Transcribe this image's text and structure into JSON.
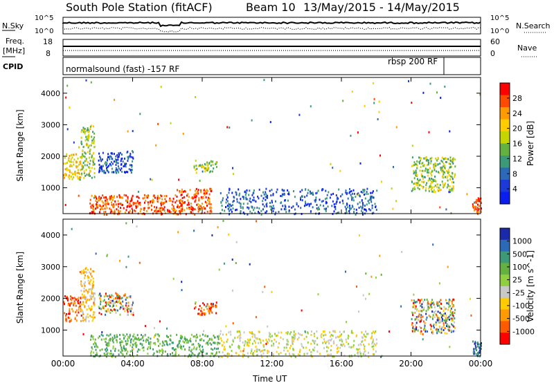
{
  "header": {
    "station": "South Pole Station (fitACF)",
    "beam": "Beam 10",
    "dates": "13/May/2015 - 14/May/2015"
  },
  "summary_panels": {
    "nsky": {
      "label": "N.Sky",
      "ticks_left": [
        "10^5",
        "10^0"
      ],
      "ticks_right": [
        "10^5",
        "10^0"
      ],
      "right_label": "N.Search"
    },
    "freq": {
      "label": "Freq.",
      "unit": "[MHz]",
      "ticks_left": [
        "18",
        "8"
      ],
      "ticks_right": [
        "60",
        "0"
      ],
      "right_label": "Nave"
    },
    "cpid": {
      "label": "CPID",
      "mode1": "normalsound (fast) -157 RF",
      "mode2": "rbsp 200 RF"
    }
  },
  "chart_data": [
    {
      "type": "heatmap",
      "title": "",
      "xlabel": "Time UT",
      "ylabel": "Slant Range [km]",
      "xticks": [
        "00:00",
        "04:00",
        "08:00",
        "12:00",
        "16:00",
        "20:00",
        "00:00"
      ],
      "yticks": [
        "1000",
        "2000",
        "3000",
        "4000"
      ],
      "ylim": [
        180,
        4500
      ],
      "xlim_hours": [
        0,
        24
      ],
      "colorbar": {
        "label": "Power [dB]",
        "ticks": [
          "28",
          "24",
          "20",
          "16",
          "12",
          "8",
          "4"
        ],
        "colors": [
          "#ff0000",
          "#ff4a00",
          "#ff9a00",
          "#ffcc00",
          "#c6d400",
          "#64b040",
          "#3c9a78",
          "#2c6ab8",
          "#1c3ad8",
          "#0a1ef0"
        ]
      },
      "echo_regions": [
        {
          "t": [
            0.0,
            1.0
          ],
          "r": [
            1300,
            2100
          ],
          "value": "med-high"
        },
        {
          "t": [
            1.0,
            1.8
          ],
          "r": [
            1300,
            3000
          ],
          "value": "med"
        },
        {
          "t": [
            1.5,
            6.5
          ],
          "r": [
            180,
            800
          ],
          "value": "high"
        },
        {
          "t": [
            6.5,
            8.5
          ],
          "r": [
            180,
            1000
          ],
          "value": "high"
        },
        {
          "t": [
            2.0,
            4.0
          ],
          "r": [
            1500,
            2200
          ],
          "value": "low"
        },
        {
          "t": [
            7.5,
            8.8
          ],
          "r": [
            1500,
            1900
          ],
          "value": "med"
        },
        {
          "t": [
            9.0,
            18.0
          ],
          "r": [
            180,
            1000
          ],
          "value": "low"
        },
        {
          "t": [
            20.0,
            22.5
          ],
          "r": [
            900,
            2000
          ],
          "value": "med"
        },
        {
          "t": [
            23.5,
            24.0
          ],
          "r": [
            180,
            700
          ],
          "value": "high"
        }
      ]
    },
    {
      "type": "heatmap",
      "title": "",
      "xlabel": "Time UT",
      "ylabel": "Slant Range [km]",
      "xticks": [
        "00:00",
        "04:00",
        "08:00",
        "12:00",
        "16:00",
        "20:00",
        "00:00"
      ],
      "yticks": [
        "1000",
        "2000",
        "3000",
        "4000"
      ],
      "ylim": [
        180,
        4500
      ],
      "xlim_hours": [
        0,
        24
      ],
      "colorbar": {
        "label": "Velocity [m s^-1]",
        "ticks": [
          "1000",
          "500",
          "100",
          "25",
          "-25",
          "-100",
          "-500",
          "-1000"
        ],
        "colors": [
          "#1a2aa8",
          "#2c6ab8",
          "#3c9a78",
          "#64b040",
          "#90d040",
          "#c8c8c8",
          "#ffcc00",
          "#ff9a00",
          "#ff5a00",
          "#ff0000"
        ]
      },
      "echo_regions": [
        {
          "t": [
            0.0,
            1.0
          ],
          "r": [
            1300,
            2100
          ],
          "value": "-500"
        },
        {
          "t": [
            1.0,
            1.8
          ],
          "r": [
            1300,
            3000
          ],
          "value": "-100"
        },
        {
          "t": [
            1.5,
            9.0
          ],
          "r": [
            180,
            900
          ],
          "value": "100"
        },
        {
          "t": [
            2.0,
            4.0
          ],
          "r": [
            1500,
            2200
          ],
          "value": "mixed"
        },
        {
          "t": [
            7.5,
            8.8
          ],
          "r": [
            1500,
            1900
          ],
          "value": "-500"
        },
        {
          "t": [
            9.0,
            18.0
          ],
          "r": [
            180,
            1000
          ],
          "value": "-25"
        },
        {
          "t": [
            20.0,
            22.5
          ],
          "r": [
            900,
            2000
          ],
          "value": "mixed"
        },
        {
          "t": [
            23.5,
            24.0
          ],
          "r": [
            180,
            700
          ],
          "value": "500"
        }
      ]
    }
  ]
}
